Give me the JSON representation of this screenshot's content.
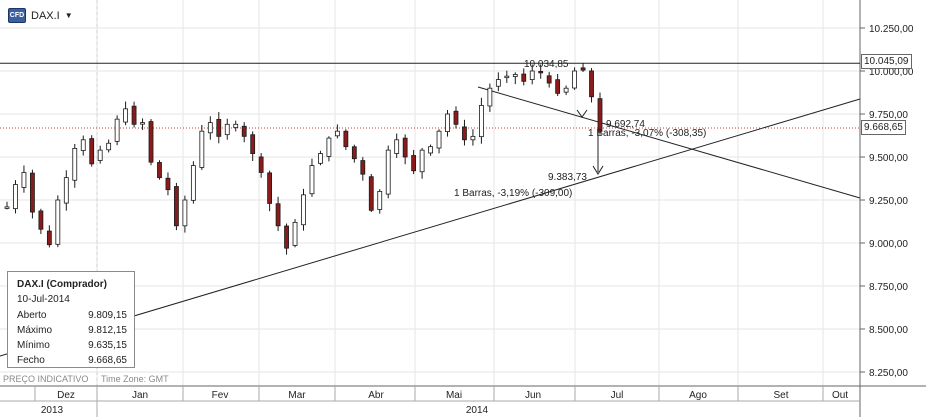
{
  "symbol": {
    "name": "DAX.I",
    "icon": "cfd-icon",
    "icon_text": "CFD"
  },
  "info": {
    "title": "DAX.I (Comprador)",
    "date": "10-Jul-2014",
    "rows": [
      {
        "label": "Aberto",
        "value": "9.809,15"
      },
      {
        "label": "Máximo",
        "value": "9.812,15"
      },
      {
        "label": "Mínimo",
        "value": "9.635,15"
      },
      {
        "label": "Fecho",
        "value": "9.668,65"
      }
    ]
  },
  "status": {
    "indicative": "PREÇO INDICATIVO",
    "timezone": "Time Zone: GMT"
  },
  "price_labels": {
    "line": "10.045,09",
    "last": "9.668,65"
  },
  "annotations": {
    "high": "10.034,85",
    "low1": "9.692,74",
    "bars1": "1 Barras, -3,07% (-308,35)",
    "low2": "9.383,73",
    "bars2": "1 Barras, -3,19% (-309,00)"
  },
  "colors": {
    "up": "#ffffff",
    "down": "#8b1a1a",
    "candle_outline": "#1a1a1a",
    "grid": "#e6e6e6",
    "dotted": "#c04040"
  },
  "chart_data": {
    "type": "candlestick",
    "y_axis": {
      "min": 8200,
      "max": 10400,
      "ticks": [
        8250,
        8500,
        8750,
        9000,
        9250,
        9500,
        9750,
        10000,
        10250
      ],
      "tick_labels": [
        "8.250,00",
        "8.500,00",
        "8.750,00",
        "9.000,00",
        "9.250,00",
        "9.500,00",
        "9.750,00",
        "10.000,00",
        "10.250,00"
      ]
    },
    "x_axis": {
      "months": [
        "Dez",
        "Jan",
        "Fev",
        "Mar",
        "Abr",
        "Mai",
        "Jun",
        "Jul",
        "Ago",
        "Set",
        "Out"
      ],
      "years": [
        "2013",
        "2014"
      ]
    },
    "close_path": [
      9210,
      9340,
      9410,
      9180,
      9080,
      8990,
      9250,
      9380,
      9550,
      9600,
      9460,
      9540,
      9580,
      9720,
      9780,
      9690,
      9700,
      9470,
      9380,
      9310,
      9100,
      9250,
      9450,
      9650,
      9700,
      9620,
      9690,
      9690,
      9620,
      9520,
      9410,
      9230,
      9100,
      8970,
      9120,
      9280,
      9450,
      9520,
      9610,
      9650,
      9560,
      9490,
      9400,
      9190,
      9300,
      9540,
      9600,
      9500,
      9420,
      9540,
      9560,
      9650,
      9750,
      9690,
      9600,
      9620,
      9800,
      9900,
      9950,
      9970,
      9980,
      9940,
      10000,
      9990,
      9930,
      9870,
      9900,
      10000,
      10005,
      9850,
      9650
    ]
  }
}
